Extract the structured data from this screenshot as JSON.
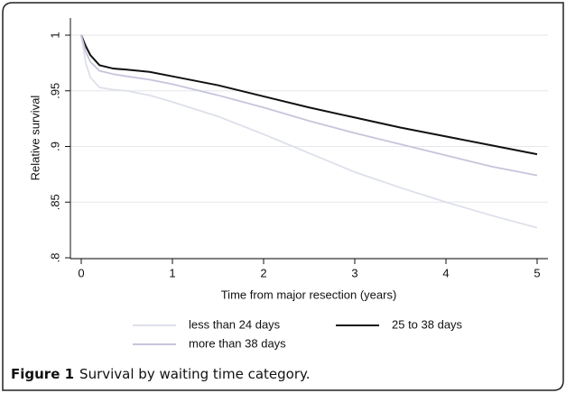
{
  "chart_data": {
    "type": "line",
    "x_label": "Time from major resection (years)",
    "y_label": "Relative survival",
    "caption_label": "Figure 1",
    "caption": "Survival by waiting time category.",
    "x": [
      0,
      0.05,
      0.1,
      0.2,
      0.35,
      0.5,
      0.75,
      1,
      1.5,
      2,
      2.5,
      3,
      3.5,
      4,
      4.5,
      5
    ],
    "series": [
      {
        "name": "less than 24 days",
        "color": "#dde0ea",
        "values": [
          1,
          0.975,
          0.962,
          0.953,
          0.951,
          0.95,
          0.946,
          0.94,
          0.927,
          0.911,
          0.894,
          0.877,
          0.863,
          0.85,
          0.838,
          0.827
        ]
      },
      {
        "name": "25 to 38 days",
        "color": "#111111",
        "values": [
          1,
          0.99,
          0.982,
          0.973,
          0.97,
          0.969,
          0.967,
          0.963,
          0.955,
          0.945,
          0.935,
          0.926,
          0.917,
          0.909,
          0.901,
          0.893
        ]
      },
      {
        "name": "more than 38 days",
        "color": "#c5c5dc",
        "values": [
          1,
          0.985,
          0.976,
          0.968,
          0.965,
          0.963,
          0.96,
          0.956,
          0.946,
          0.935,
          0.923,
          0.912,
          0.902,
          0.892,
          0.882,
          0.874
        ]
      }
    ],
    "xlim": [
      0,
      5
    ],
    "xticks": [
      0,
      1,
      2,
      3,
      4,
      5
    ],
    "ylim": [
      0.8,
      1
    ],
    "yticks": [
      {
        "value": 0.8,
        "label": ".8"
      },
      {
        "value": 0.85,
        "label": ".85"
      },
      {
        "value": 0.9,
        "label": ".9"
      },
      {
        "value": 0.95,
        "label": ".95"
      },
      1
    ],
    "grid": true
  }
}
